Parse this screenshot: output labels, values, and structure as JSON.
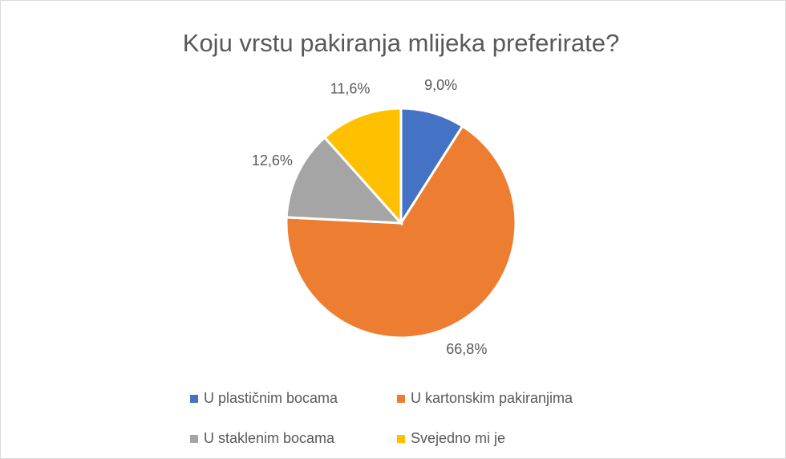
{
  "chart_data": {
    "type": "pie",
    "title": "Koju vrstu pakiranja mlijeka preferirate?",
    "categories": [
      "U plastičnim bocama",
      "U kartonskim pakiranjima",
      "U staklenim bocama",
      "Svejedno mi je"
    ],
    "values": [
      9.0,
      66.8,
      12.6,
      11.6
    ],
    "value_labels": [
      "9,0%",
      "66,8%",
      "12,6%",
      "11,6%"
    ],
    "colors": [
      "#4472c4",
      "#ed7d31",
      "#a5a5a5",
      "#ffc000"
    ],
    "legend": "bottom"
  }
}
